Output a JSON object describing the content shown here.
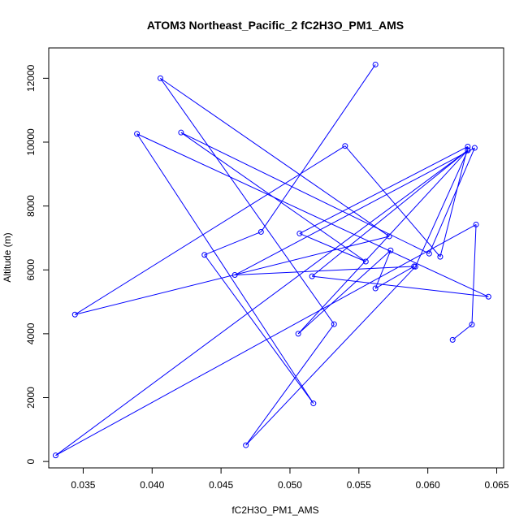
{
  "chart_data": {
    "type": "line",
    "title": "ATOM3 Northeast_Pacific_2 fC2H3O_PM1_AMS",
    "xlabel": "fC2H3O_PM1_AMS",
    "ylabel": "Altitude (m)",
    "xlim": [
      0.0325,
      0.0655
    ],
    "ylim": [
      -200,
      12950
    ],
    "xticks": [
      0.035,
      0.04,
      0.045,
      0.05,
      0.055,
      0.06,
      0.065
    ],
    "xtick_labels": [
      "0.035",
      "0.040",
      "0.045",
      "0.050",
      "0.055",
      "0.060",
      "0.065"
    ],
    "yticks": [
      0,
      2000,
      4000,
      6000,
      8000,
      10000,
      12000
    ],
    "ytick_labels": [
      "0",
      "2000",
      "4000",
      "6000",
      "8000",
      "10000",
      "12000"
    ],
    "grid": false,
    "legend": "none",
    "color": "#0000ff",
    "series": [
      {
        "x": [
          0.0618,
          0.0632,
          0.0635,
          0.033,
          0.0629,
          0.0591,
          0.0468,
          0.0532,
          0.0406,
          0.0572,
          0.0344,
          0.054,
          0.0609,
          0.0629,
          0.0507,
          0.0555,
          0.0421,
          0.0601,
          0.0634,
          0.046,
          0.059,
          0.0562,
          0.0573,
          0.0506,
          0.0629,
          0.0516,
          0.0644,
          0.0389,
          0.0517,
          0.0438,
          0.0479,
          0.0562
        ],
        "y": [
          3810,
          4290,
          7420,
          190,
          9740,
          6100,
          510,
          4300,
          12000,
          7050,
          4600,
          9880,
          6410,
          9860,
          7140,
          6260,
          10300,
          6510,
          9820,
          5840,
          6110,
          5420,
          6610,
          4000,
          9750,
          5800,
          5160,
          10260,
          1820,
          6470,
          7190,
          12430
        ]
      }
    ]
  }
}
